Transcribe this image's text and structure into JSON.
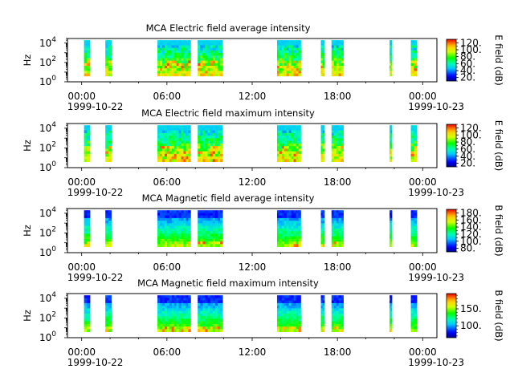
{
  "figure": {
    "date_labels": [
      "1999-10-22",
      "1999-10-23"
    ]
  },
  "chart_data": [
    {
      "type": "heatmap",
      "title": "MCA  Electric field average intensity",
      "ylabel": "Hz",
      "yscale": "log",
      "ylim": [
        1,
        30000
      ],
      "y_ticks": [
        {
          "exp": "0",
          "value": 1
        },
        {
          "exp": "2",
          "value": 100
        },
        {
          "exp": "4",
          "value": 10000
        }
      ],
      "x_ticks": [
        "00:00",
        "06:00",
        "12:00",
        "18:00",
        "00:00"
      ],
      "x_range": [
        "1999-10-21T23:00",
        "1999-10-23T01:00"
      ],
      "colorbar": {
        "label": "E field (dB)",
        "range": [
          10,
          130
        ],
        "ticks": [
          "20.",
          "40.",
          "60.",
          "80.",
          "100.",
          "120."
        ],
        "tick_values": [
          20,
          40,
          60,
          80,
          100,
          120
        ]
      },
      "data_intervals": [
        [
          "00:10",
          "00:35"
        ],
        [
          "01:40",
          "02:05"
        ],
        [
          "05:20",
          "07:40"
        ],
        [
          "08:10",
          "09:55"
        ],
        [
          "13:45",
          "15:25"
        ],
        [
          "16:50",
          "17:05"
        ],
        [
          "17:35",
          "18:25"
        ],
        [
          "21:40",
          "21:50"
        ],
        [
          "23:10",
          "23:35"
        ]
      ]
    },
    {
      "type": "heatmap",
      "title": "MCA  Electric field maximum intensity",
      "ylabel": "Hz",
      "yscale": "log",
      "ylim": [
        1,
        30000
      ],
      "y_ticks": [
        {
          "exp": "0",
          "value": 1
        },
        {
          "exp": "2",
          "value": 100
        },
        {
          "exp": "4",
          "value": 10000
        }
      ],
      "x_ticks": [
        "00:00",
        "06:00",
        "12:00",
        "18:00",
        "00:00"
      ],
      "x_range": [
        "1999-10-21T23:00",
        "1999-10-23T01:00"
      ],
      "colorbar": {
        "label": "E field (dB)",
        "range": [
          10,
          130
        ],
        "ticks": [
          "20.",
          "40.",
          "60.",
          "80.",
          "100.",
          "120."
        ],
        "tick_values": [
          20,
          40,
          60,
          80,
          100,
          120
        ]
      },
      "data_intervals": [
        [
          "00:10",
          "00:35"
        ],
        [
          "01:40",
          "02:05"
        ],
        [
          "05:20",
          "07:40"
        ],
        [
          "08:10",
          "09:55"
        ],
        [
          "13:45",
          "15:25"
        ],
        [
          "16:50",
          "17:05"
        ],
        [
          "17:35",
          "18:25"
        ],
        [
          "21:40",
          "21:50"
        ],
        [
          "23:10",
          "23:35"
        ]
      ]
    },
    {
      "type": "heatmap",
      "title": "MCA  Magnetic field average intensity",
      "ylabel": "Hz",
      "yscale": "log",
      "ylim": [
        1,
        30000
      ],
      "y_ticks": [
        {
          "exp": "0",
          "value": 1
        },
        {
          "exp": "2",
          "value": 100
        },
        {
          "exp": "4",
          "value": 10000
        }
      ],
      "x_ticks": [
        "00:00",
        "06:00",
        "12:00",
        "18:00",
        "00:00"
      ],
      "x_range": [
        "1999-10-21T23:00",
        "1999-10-23T01:00"
      ],
      "colorbar": {
        "label": "B field (dB)",
        "range": [
          70,
          190
        ],
        "ticks": [
          "80.",
          "100.",
          "120.",
          "140.",
          "160.",
          "180."
        ],
        "tick_values": [
          80,
          100,
          120,
          140,
          160,
          180
        ]
      },
      "data_intervals": [
        [
          "00:10",
          "00:35"
        ],
        [
          "01:40",
          "02:05"
        ],
        [
          "05:20",
          "07:40"
        ],
        [
          "08:10",
          "09:55"
        ],
        [
          "13:45",
          "15:25"
        ],
        [
          "16:50",
          "17:05"
        ],
        [
          "17:35",
          "18:25"
        ],
        [
          "21:40",
          "21:50"
        ],
        [
          "23:10",
          "23:35"
        ]
      ]
    },
    {
      "type": "heatmap",
      "title": "MCA  Magnetic field maximum intensity",
      "ylabel": "Hz",
      "yscale": "log",
      "ylim": [
        1,
        30000
      ],
      "y_ticks": [
        {
          "exp": "0",
          "value": 1
        },
        {
          "exp": "2",
          "value": 100
        },
        {
          "exp": "4",
          "value": 10000
        }
      ],
      "x_ticks": [
        "00:00",
        "06:00",
        "12:00",
        "18:00",
        "00:00"
      ],
      "x_range": [
        "1999-10-21T23:00",
        "1999-10-23T01:00"
      ],
      "colorbar": {
        "label": "B field (dB)",
        "range": [
          65,
          195
        ],
        "ticks": [
          "100.",
          "150."
        ],
        "tick_values": [
          100,
          150
        ]
      },
      "data_intervals": [
        [
          "00:10",
          "00:35"
        ],
        [
          "01:40",
          "02:05"
        ],
        [
          "05:20",
          "07:40"
        ],
        [
          "08:10",
          "09:55"
        ],
        [
          "13:45",
          "15:25"
        ],
        [
          "16:50",
          "17:05"
        ],
        [
          "17:35",
          "18:25"
        ],
        [
          "21:40",
          "21:50"
        ],
        [
          "23:10",
          "23:35"
        ]
      ]
    }
  ]
}
